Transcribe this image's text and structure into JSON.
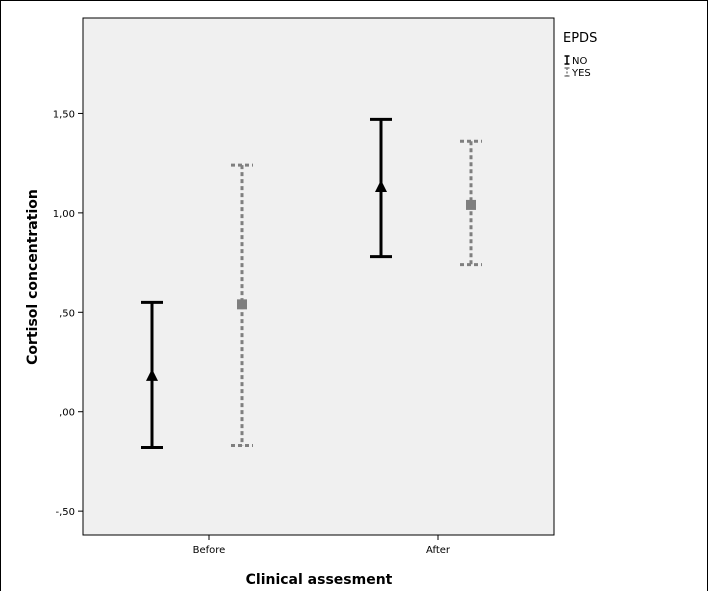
{
  "chart_data": {
    "type": "errorbar",
    "xlabel": "Clinical assesment",
    "ylabel": "Cortisol concentration",
    "categories": [
      "Before",
      "After"
    ],
    "ylim": [
      -0.62,
      1.98
    ],
    "yticks": [
      -0.5,
      0.0,
      0.5,
      1.0,
      1.5
    ],
    "ytick_labels": [
      "-,50",
      ",00",
      ",50",
      "1,00",
      "1,50"
    ],
    "legend": {
      "title": "EPDS",
      "placement": "top-right outside"
    },
    "series": [
      {
        "name": "NO",
        "marker": "triangle",
        "line_style": "solid",
        "color": "#000000",
        "points": [
          {
            "category": "Before",
            "mean": 0.18,
            "lower": -0.18,
            "upper": 0.55
          },
          {
            "category": "After",
            "mean": 1.13,
            "lower": 0.78,
            "upper": 1.47
          }
        ]
      },
      {
        "name": "YES",
        "marker": "square",
        "line_style": "dashed",
        "color": "#7f7f7f",
        "points": [
          {
            "category": "Before",
            "mean": 0.54,
            "lower": -0.17,
            "upper": 1.24
          },
          {
            "category": "After",
            "mean": 1.04,
            "lower": 0.74,
            "upper": 1.36
          }
        ]
      }
    ],
    "grid": false,
    "plot_background": "#f0f0f0"
  }
}
